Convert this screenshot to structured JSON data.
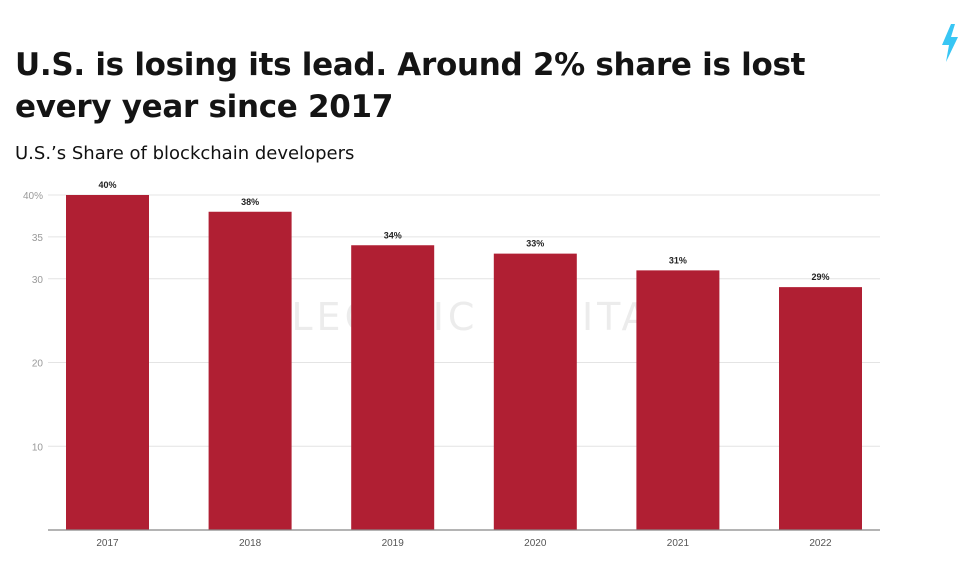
{
  "header": {
    "title": "U.S. is losing its lead. Around 2% share is lost every year since 2017",
    "subtitle": "U.S.’s Share of blockchain developers",
    "logo_icon": "lightning-bolt-icon",
    "watermark": "ELECTRIC CAPITAL"
  },
  "colors": {
    "bar": "#b01f33",
    "accent": "#38c6f4",
    "grid": "#e4e4e4",
    "axis": "#888888"
  },
  "chart_data": {
    "type": "bar",
    "title": "U.S. is losing its lead. Around 2% share is lost every year since 2017",
    "subtitle": "U.S.’s Share of blockchain developers",
    "categories": [
      "2017",
      "2018",
      "2019",
      "2020",
      "2021",
      "2022"
    ],
    "values": [
      40,
      38,
      34,
      33,
      31,
      29
    ],
    "data_labels": [
      "40%",
      "38%",
      "34%",
      "33%",
      "31%",
      "29%"
    ],
    "ylim": [
      0,
      40
    ],
    "yticks": [
      10,
      20,
      30,
      35,
      40
    ],
    "ytick_labels": [
      "10",
      "20",
      "30",
      "35",
      "40%"
    ],
    "xlabel": "",
    "ylabel": "",
    "grid": true,
    "legend": "none"
  }
}
